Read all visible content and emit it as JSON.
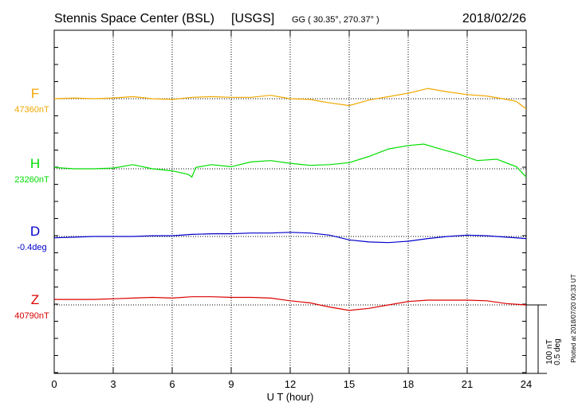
{
  "header": {
    "station": "Stennis Space Center (BSL)",
    "network": "[USGS]",
    "coords": "GG ( 30.35°, 270.37° )",
    "date": "2018/02/26"
  },
  "plotted_note": "Plotted at 2018/07/20 00:33 UT",
  "scale_bar": {
    "line1": "100 nT",
    "line2": "0.5 deg"
  },
  "chart_data": {
    "type": "line",
    "title": "Stennis Space Center (BSL)  [USGS]",
    "xlabel": "U T (hour)",
    "ylabel": "",
    "xlim": [
      0,
      24
    ],
    "x_ticks": [
      "0",
      "3",
      "6",
      "9",
      "12",
      "15",
      "18",
      "21",
      "24"
    ],
    "grid": true,
    "series": [
      {
        "name": "F",
        "baseline_label": "47360nT",
        "color": "#f0a800",
        "x": [
          0,
          1,
          2,
          3,
          4,
          5,
          6,
          7,
          8,
          9,
          10,
          11,
          12,
          13,
          14,
          15,
          16,
          17,
          18,
          19,
          20,
          21,
          22,
          23,
          23.5,
          24
        ],
        "y": [
          0,
          1,
          0,
          1,
          3,
          0,
          -1,
          2,
          3,
          2,
          2,
          5,
          0,
          -1,
          -6,
          -10,
          -2,
          3,
          8,
          15,
          10,
          6,
          4,
          -1,
          -4,
          -15
        ]
      },
      {
        "name": "H",
        "baseline_label": "23260nT",
        "color": "#00dd00",
        "x": [
          0,
          1,
          2,
          3,
          4,
          5,
          6,
          6.8,
          7,
          7.2,
          8,
          9,
          10,
          11,
          12,
          13,
          14,
          15,
          16,
          17,
          18,
          18.8,
          19.5,
          20.5,
          21.5,
          22.5,
          23.5,
          24
        ],
        "y": [
          2,
          0,
          0,
          1,
          6,
          0,
          -3,
          -8,
          -12,
          2,
          6,
          3,
          10,
          12,
          8,
          5,
          6,
          9,
          18,
          29,
          34,
          36,
          30,
          22,
          12,
          14,
          3,
          -12
        ]
      },
      {
        "name": "D",
        "baseline_label": "-0.4deg",
        "color": "#0000cc",
        "x": [
          0,
          1,
          2,
          3,
          4,
          5,
          6,
          7,
          8,
          9,
          10,
          11,
          12,
          13,
          14,
          15,
          16,
          17,
          18,
          19,
          20,
          21,
          22,
          23,
          24
        ],
        "y": [
          -2,
          -1,
          0,
          0,
          0,
          1,
          1,
          3,
          4,
          4,
          5,
          5,
          6,
          5,
          2,
          -5,
          -8,
          -9,
          -7,
          -3,
          0,
          2,
          1,
          -1,
          -3
        ]
      },
      {
        "name": "Z",
        "baseline_label": "40790nT",
        "color": "#dd0000",
        "x": [
          0,
          1,
          2,
          3,
          4,
          5,
          6,
          7,
          8,
          9,
          10,
          11,
          12,
          13,
          14,
          15,
          16,
          17,
          18,
          19,
          20,
          21,
          22,
          23,
          24
        ],
        "y": [
          8,
          8,
          8,
          9,
          10,
          11,
          10,
          12,
          12,
          11,
          11,
          10,
          6,
          3,
          -3,
          -8,
          -5,
          0,
          5,
          7,
          7,
          7,
          6,
          2,
          0
        ]
      }
    ]
  }
}
